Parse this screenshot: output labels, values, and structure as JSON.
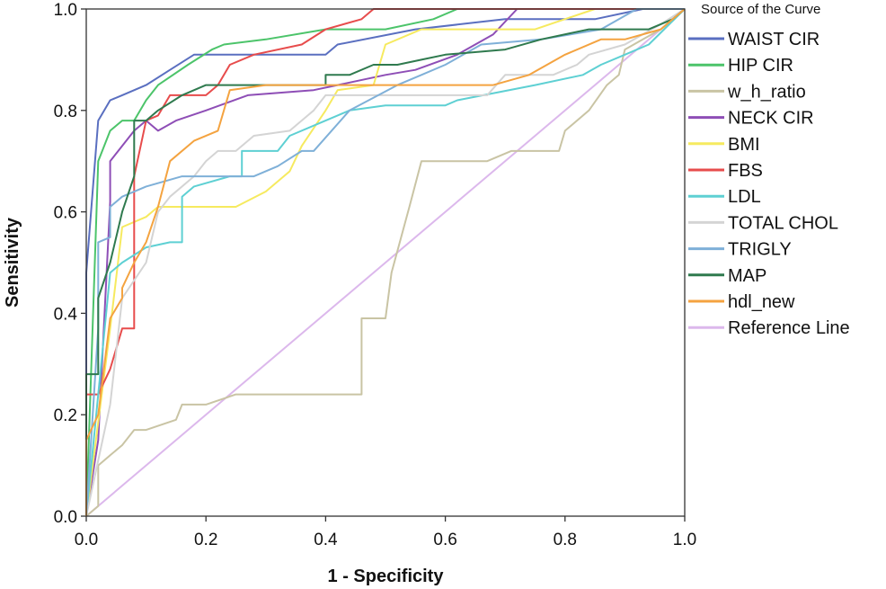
{
  "chart_data": {
    "type": "line",
    "title": "",
    "xlabel": "1 - Specificity",
    "ylabel": "Sensitivity",
    "xlim": [
      0,
      1
    ],
    "ylim": [
      0,
      1
    ],
    "x_ticks": [
      "0.0",
      "0.2",
      "0.4",
      "0.6",
      "0.8",
      "1.0"
    ],
    "y_ticks": [
      "0.0",
      "0.2",
      "0.4",
      "0.6",
      "0.8",
      "1.0"
    ],
    "grid": false,
    "legend_title": "Source of the Curve",
    "legend_position": "right",
    "series": [
      {
        "name": "WAIST CIR",
        "color": "#5a6fc0",
        "points": [
          [
            0,
            0
          ],
          [
            0,
            0.48
          ],
          [
            0.02,
            0.78
          ],
          [
            0.03,
            0.8
          ],
          [
            0.04,
            0.82
          ],
          [
            0.06,
            0.83
          ],
          [
            0.1,
            0.85
          ],
          [
            0.14,
            0.88
          ],
          [
            0.18,
            0.91
          ],
          [
            0.25,
            0.91
          ],
          [
            0.4,
            0.91
          ],
          [
            0.42,
            0.93
          ],
          [
            0.55,
            0.96
          ],
          [
            0.7,
            0.98
          ],
          [
            0.85,
            0.98
          ],
          [
            0.93,
            1.0
          ],
          [
            1.0,
            1.0
          ]
        ]
      },
      {
        "name": "HIP CIR",
        "color": "#4cc46a",
        "points": [
          [
            0,
            0
          ],
          [
            0.02,
            0.7
          ],
          [
            0.04,
            0.76
          ],
          [
            0.06,
            0.78
          ],
          [
            0.08,
            0.78
          ],
          [
            0.1,
            0.82
          ],
          [
            0.12,
            0.85
          ],
          [
            0.17,
            0.89
          ],
          [
            0.21,
            0.92
          ],
          [
            0.23,
            0.93
          ],
          [
            0.3,
            0.94
          ],
          [
            0.4,
            0.96
          ],
          [
            0.5,
            0.96
          ],
          [
            0.58,
            0.98
          ],
          [
            0.62,
            1.0
          ],
          [
            1.0,
            1.0
          ]
        ]
      },
      {
        "name": "w_h_ratio",
        "color": "#c9c4a4",
        "points": [
          [
            0,
            0
          ],
          [
            0.02,
            0.02
          ],
          [
            0.02,
            0.1
          ],
          [
            0.04,
            0.12
          ],
          [
            0.06,
            0.14
          ],
          [
            0.08,
            0.17
          ],
          [
            0.1,
            0.17
          ],
          [
            0.15,
            0.19
          ],
          [
            0.16,
            0.22
          ],
          [
            0.2,
            0.22
          ],
          [
            0.25,
            0.24
          ],
          [
            0.46,
            0.24
          ],
          [
            0.46,
            0.39
          ],
          [
            0.5,
            0.39
          ],
          [
            0.51,
            0.48
          ],
          [
            0.54,
            0.61
          ],
          [
            0.56,
            0.7
          ],
          [
            0.67,
            0.7
          ],
          [
            0.71,
            0.72
          ],
          [
            0.79,
            0.72
          ],
          [
            0.8,
            0.76
          ],
          [
            0.84,
            0.8
          ],
          [
            0.87,
            0.85
          ],
          [
            0.89,
            0.87
          ],
          [
            0.9,
            0.92
          ],
          [
            0.93,
            0.94
          ],
          [
            0.96,
            0.96
          ],
          [
            1.0,
            1.0
          ]
        ]
      },
      {
        "name": "NECK CIR",
        "color": "#8e4eb6",
        "points": [
          [
            0,
            0
          ],
          [
            0.02,
            0.15
          ],
          [
            0.04,
            0.62
          ],
          [
            0.04,
            0.7
          ],
          [
            0.06,
            0.73
          ],
          [
            0.08,
            0.76
          ],
          [
            0.1,
            0.78
          ],
          [
            0.12,
            0.76
          ],
          [
            0.15,
            0.78
          ],
          [
            0.2,
            0.8
          ],
          [
            0.27,
            0.83
          ],
          [
            0.38,
            0.84
          ],
          [
            0.42,
            0.85
          ],
          [
            0.5,
            0.87
          ],
          [
            0.55,
            0.88
          ],
          [
            0.62,
            0.91
          ],
          [
            0.68,
            0.95
          ],
          [
            0.72,
            1.0
          ],
          [
            1.0,
            1.0
          ]
        ]
      },
      {
        "name": "BMI",
        "color": "#f6ea5f",
        "points": [
          [
            0,
            0
          ],
          [
            0.04,
            0.37
          ],
          [
            0.06,
            0.57
          ],
          [
            0.1,
            0.59
          ],
          [
            0.12,
            0.61
          ],
          [
            0.18,
            0.61
          ],
          [
            0.25,
            0.61
          ],
          [
            0.3,
            0.64
          ],
          [
            0.34,
            0.68
          ],
          [
            0.36,
            0.73
          ],
          [
            0.4,
            0.8
          ],
          [
            0.42,
            0.84
          ],
          [
            0.48,
            0.85
          ],
          [
            0.5,
            0.93
          ],
          [
            0.56,
            0.96
          ],
          [
            0.66,
            0.96
          ],
          [
            0.75,
            0.96
          ],
          [
            0.85,
            1.0
          ],
          [
            1.0,
            1.0
          ]
        ]
      },
      {
        "name": "FBS",
        "color": "#e74c4c",
        "points": [
          [
            0,
            0
          ],
          [
            0,
            0.24
          ],
          [
            0.02,
            0.24
          ],
          [
            0.04,
            0.29
          ],
          [
            0.06,
            0.37
          ],
          [
            0.08,
            0.37
          ],
          [
            0.08,
            0.67
          ],
          [
            0.1,
            0.78
          ],
          [
            0.12,
            0.79
          ],
          [
            0.14,
            0.83
          ],
          [
            0.2,
            0.83
          ],
          [
            0.22,
            0.85
          ],
          [
            0.24,
            0.89
          ],
          [
            0.28,
            0.91
          ],
          [
            0.36,
            0.93
          ],
          [
            0.4,
            0.96
          ],
          [
            0.46,
            0.98
          ],
          [
            0.48,
            1.0
          ],
          [
            1.0,
            1.0
          ]
        ]
      },
      {
        "name": "LDL",
        "color": "#5ed0d3",
        "points": [
          [
            0,
            0
          ],
          [
            0.02,
            0.24
          ],
          [
            0.04,
            0.48
          ],
          [
            0.06,
            0.5
          ],
          [
            0.1,
            0.53
          ],
          [
            0.14,
            0.54
          ],
          [
            0.16,
            0.54
          ],
          [
            0.16,
            0.63
          ],
          [
            0.18,
            0.65
          ],
          [
            0.24,
            0.67
          ],
          [
            0.26,
            0.67
          ],
          [
            0.26,
            0.72
          ],
          [
            0.32,
            0.72
          ],
          [
            0.34,
            0.75
          ],
          [
            0.4,
            0.78
          ],
          [
            0.44,
            0.8
          ],
          [
            0.5,
            0.81
          ],
          [
            0.6,
            0.81
          ],
          [
            0.62,
            0.82
          ],
          [
            0.75,
            0.85
          ],
          [
            0.83,
            0.87
          ],
          [
            0.86,
            0.89
          ],
          [
            0.9,
            0.91
          ],
          [
            0.94,
            0.93
          ],
          [
            1.0,
            1.0
          ]
        ]
      },
      {
        "name": "TOTAL CHOL",
        "color": "#d4d4d4",
        "points": [
          [
            0,
            0
          ],
          [
            0.04,
            0.22
          ],
          [
            0.06,
            0.43
          ],
          [
            0.1,
            0.5
          ],
          [
            0.12,
            0.6
          ],
          [
            0.14,
            0.63
          ],
          [
            0.18,
            0.67
          ],
          [
            0.2,
            0.7
          ],
          [
            0.22,
            0.72
          ],
          [
            0.25,
            0.72
          ],
          [
            0.28,
            0.75
          ],
          [
            0.34,
            0.76
          ],
          [
            0.38,
            0.8
          ],
          [
            0.4,
            0.83
          ],
          [
            0.5,
            0.83
          ],
          [
            0.67,
            0.83
          ],
          [
            0.7,
            0.87
          ],
          [
            0.78,
            0.87
          ],
          [
            0.82,
            0.89
          ],
          [
            0.84,
            0.91
          ],
          [
            0.9,
            0.93
          ],
          [
            0.96,
            0.97
          ],
          [
            1.0,
            1.0
          ]
        ]
      },
      {
        "name": "TRIGLY",
        "color": "#7fb0d8",
        "points": [
          [
            0,
            0
          ],
          [
            0.02,
            0.37
          ],
          [
            0.02,
            0.54
          ],
          [
            0.04,
            0.55
          ],
          [
            0.04,
            0.61
          ],
          [
            0.06,
            0.63
          ],
          [
            0.1,
            0.65
          ],
          [
            0.16,
            0.67
          ],
          [
            0.22,
            0.67
          ],
          [
            0.28,
            0.67
          ],
          [
            0.32,
            0.69
          ],
          [
            0.36,
            0.72
          ],
          [
            0.38,
            0.72
          ],
          [
            0.44,
            0.8
          ],
          [
            0.52,
            0.85
          ],
          [
            0.56,
            0.87
          ],
          [
            0.6,
            0.89
          ],
          [
            0.66,
            0.93
          ],
          [
            0.76,
            0.94
          ],
          [
            0.86,
            0.96
          ],
          [
            0.92,
            1.0
          ],
          [
            1.0,
            1.0
          ]
        ]
      },
      {
        "name": "MAP",
        "color": "#2f7a4e",
        "points": [
          [
            0,
            0
          ],
          [
            0,
            0.28
          ],
          [
            0.02,
            0.28
          ],
          [
            0.02,
            0.43
          ],
          [
            0.04,
            0.5
          ],
          [
            0.06,
            0.6
          ],
          [
            0.08,
            0.67
          ],
          [
            0.08,
            0.78
          ],
          [
            0.1,
            0.78
          ],
          [
            0.12,
            0.8
          ],
          [
            0.16,
            0.83
          ],
          [
            0.2,
            0.85
          ],
          [
            0.4,
            0.85
          ],
          [
            0.4,
            0.87
          ],
          [
            0.44,
            0.87
          ],
          [
            0.48,
            0.89
          ],
          [
            0.52,
            0.89
          ],
          [
            0.56,
            0.9
          ],
          [
            0.6,
            0.91
          ],
          [
            0.7,
            0.92
          ],
          [
            0.76,
            0.94
          ],
          [
            0.84,
            0.96
          ],
          [
            0.94,
            0.96
          ],
          [
            0.98,
            0.98
          ],
          [
            1.0,
            1.0
          ]
        ]
      },
      {
        "name": "hdl_new",
        "color": "#f4a340",
        "points": [
          [
            0,
            0
          ],
          [
            0,
            0.15
          ],
          [
            0.02,
            0.2
          ],
          [
            0.04,
            0.39
          ],
          [
            0.06,
            0.43
          ],
          [
            0.06,
            0.45
          ],
          [
            0.08,
            0.5
          ],
          [
            0.1,
            0.54
          ],
          [
            0.12,
            0.61
          ],
          [
            0.14,
            0.7
          ],
          [
            0.18,
            0.74
          ],
          [
            0.22,
            0.76
          ],
          [
            0.24,
            0.84
          ],
          [
            0.3,
            0.85
          ],
          [
            0.4,
            0.85
          ],
          [
            0.6,
            0.85
          ],
          [
            0.68,
            0.85
          ],
          [
            0.74,
            0.87
          ],
          [
            0.8,
            0.91
          ],
          [
            0.86,
            0.94
          ],
          [
            0.9,
            0.94
          ],
          [
            0.96,
            0.96
          ],
          [
            0.98,
            0.98
          ],
          [
            1.0,
            1.0
          ]
        ]
      },
      {
        "name": "Reference Line",
        "color": "#dcb8ec",
        "points": [
          [
            0,
            0
          ],
          [
            1,
            1
          ]
        ]
      }
    ]
  }
}
